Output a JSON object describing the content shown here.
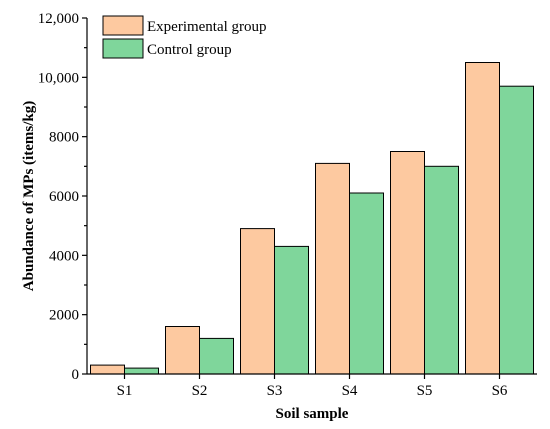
{
  "chart_data": {
    "type": "bar",
    "title": "",
    "xlabel": "Soil sample",
    "ylabel": "Abundance of MPs (items/kg)",
    "categories": [
      "S1",
      "S2",
      "S3",
      "S4",
      "S5",
      "S6"
    ],
    "ylim": [
      0,
      12000
    ],
    "yticks": [
      0,
      2000,
      4000,
      6000,
      8000,
      10000,
      12000
    ],
    "ytick_labels": [
      "0",
      "2000",
      "4000",
      "6000",
      "8000",
      "10,000",
      "12,000"
    ],
    "grid": false,
    "legend_position": "top-left",
    "series": [
      {
        "name": "Experimental group",
        "color": "#FDC9A0",
        "values": [
          300,
          1600,
          4900,
          7100,
          7500,
          10500
        ]
      },
      {
        "name": "Control group",
        "color": "#7FD69B",
        "values": [
          200,
          1200,
          4300,
          6100,
          7000,
          9700
        ]
      }
    ]
  }
}
